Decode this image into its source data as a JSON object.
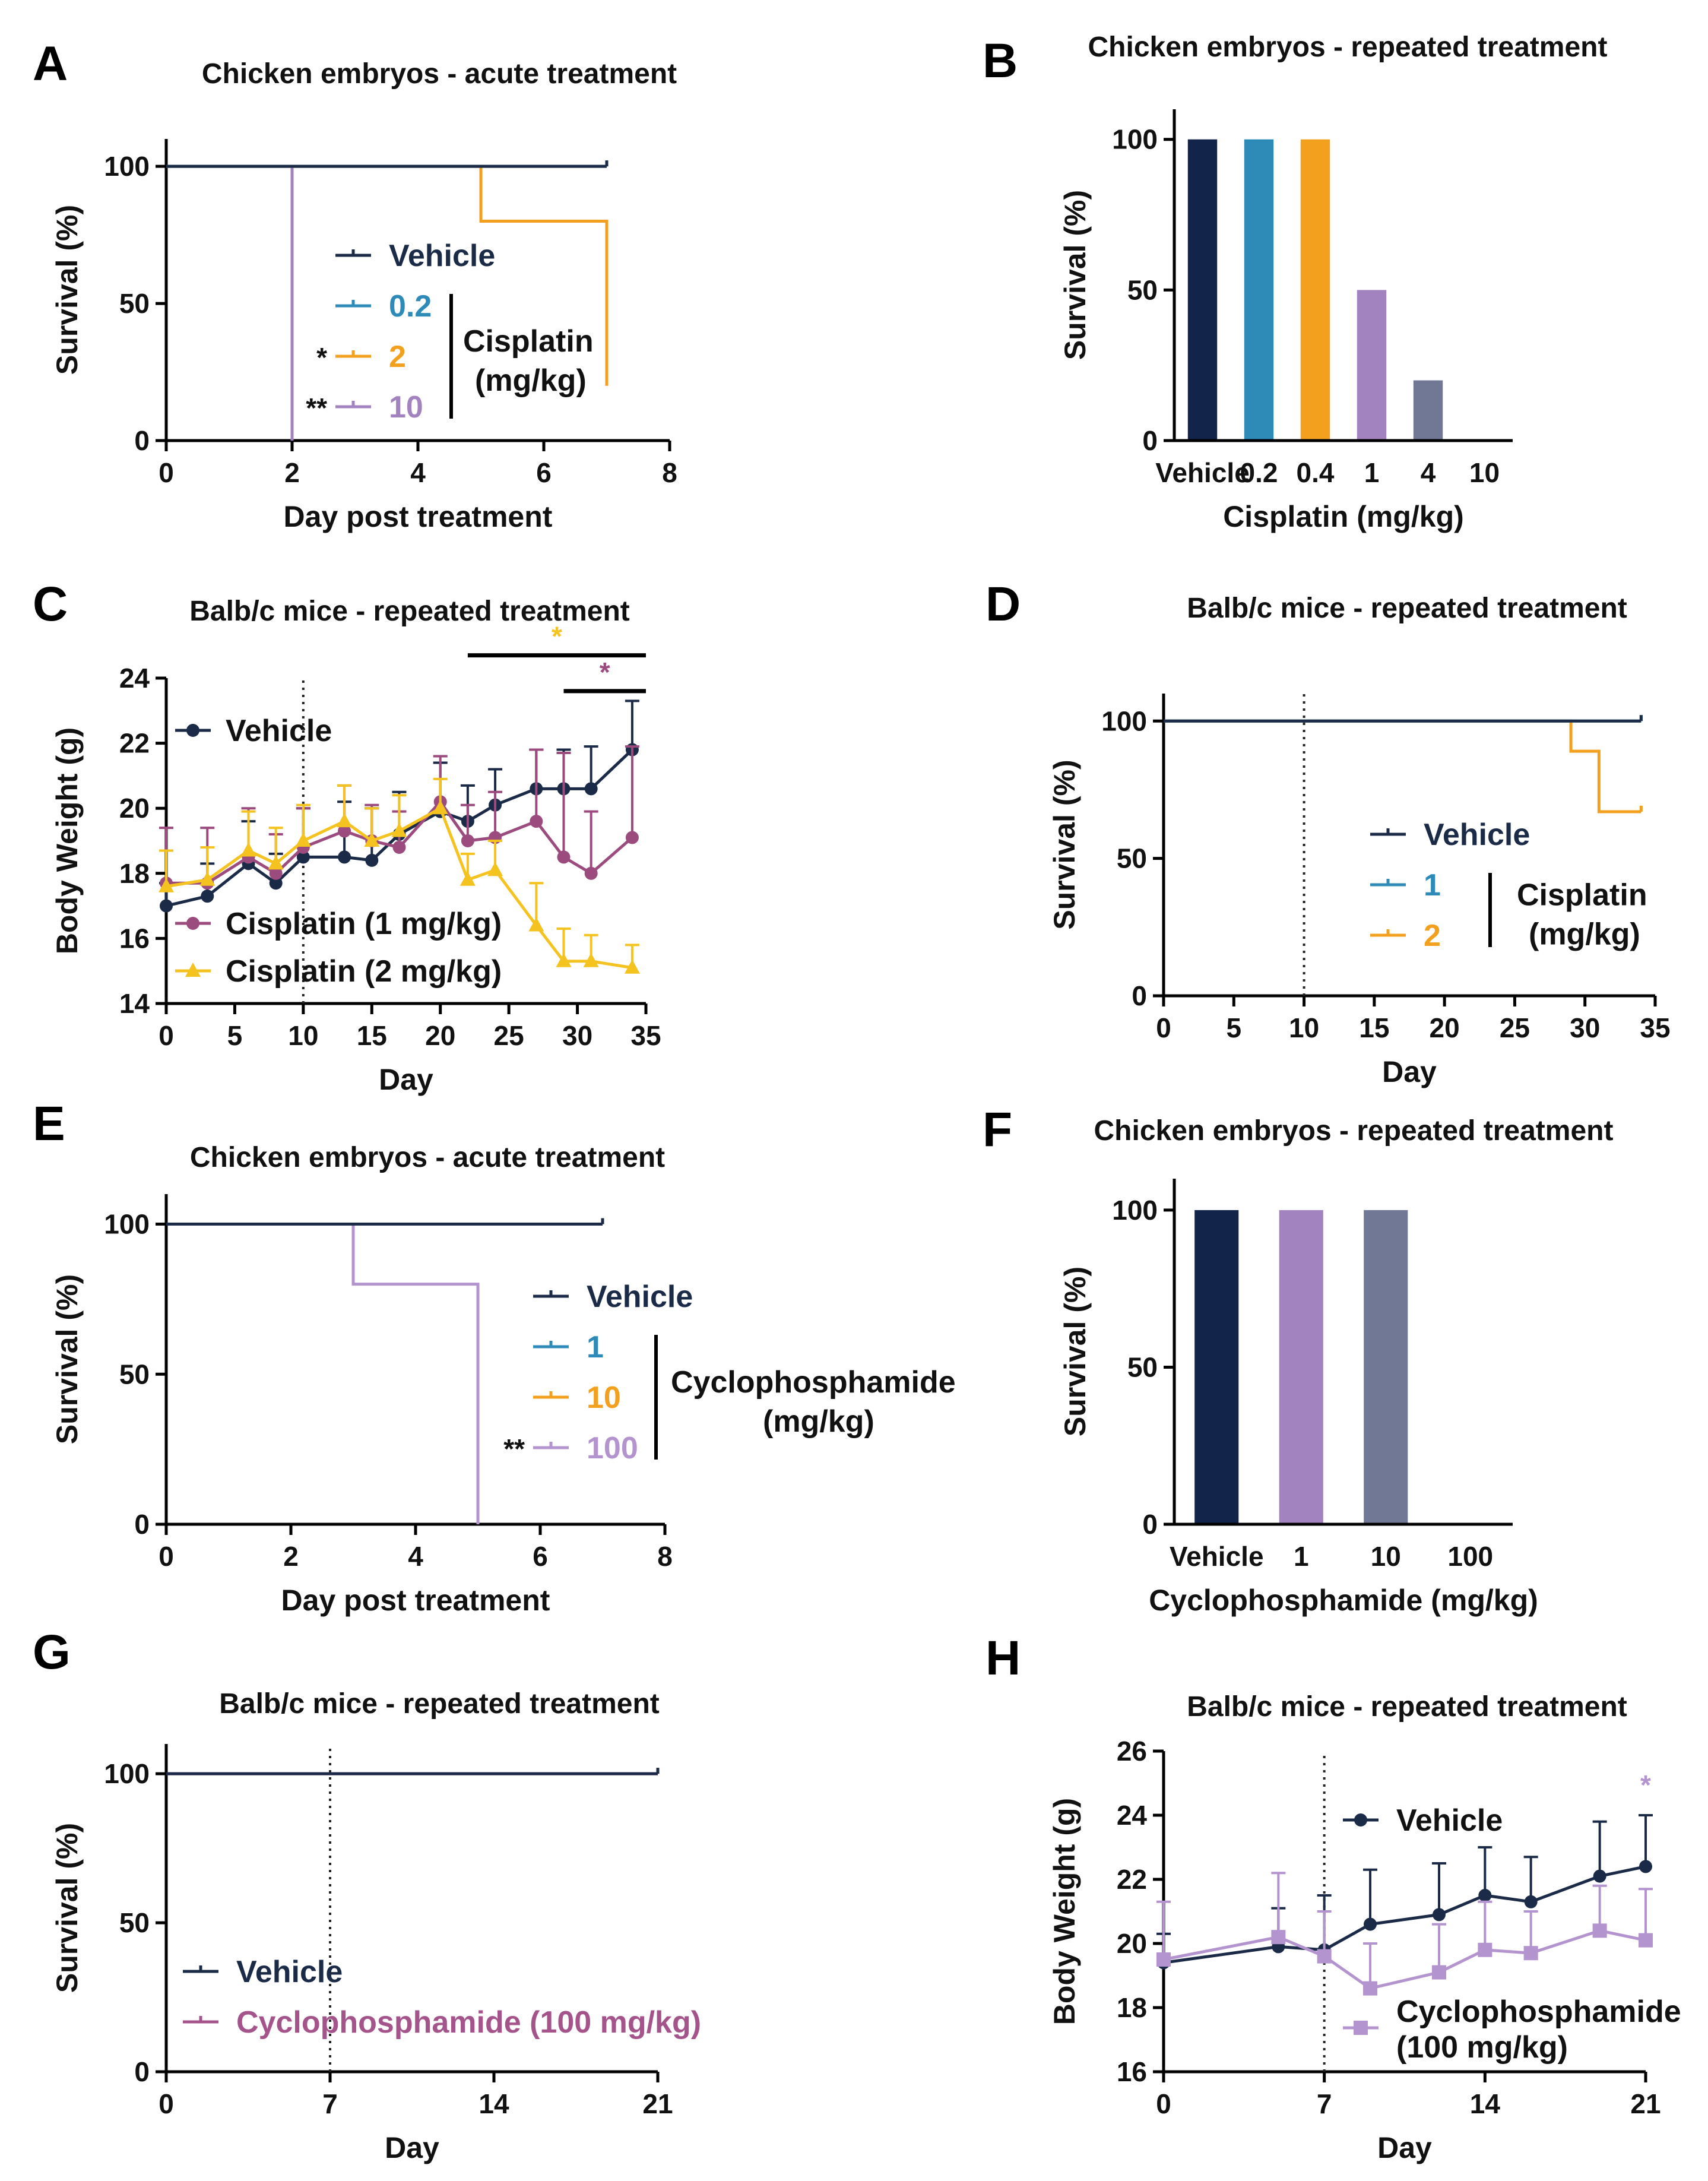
{
  "colors": {
    "navy": "#1a2a47",
    "blue": "#2e8bb8",
    "orange": "#f2a01d",
    "lilac": "#a383bf",
    "slate": "#717896",
    "magenta": "#9c4b7e",
    "yellow": "#f5c320",
    "cyclo_light": "#b494cf",
    "cyclo_pink": "#a5548b",
    "dark_bar": "#13244a"
  },
  "chart_data": [
    {
      "panel": "A",
      "type": "line",
      "title": "Chicken embryos - acute treatment",
      "xlabel": "Day post treatment",
      "ylabel": "Survival (%)",
      "xlim": [
        0,
        8
      ],
      "ylim": [
        0,
        110
      ],
      "xticks": [
        0,
        2,
        4,
        6,
        8
      ],
      "yticks": [
        0,
        50,
        100
      ],
      "series": [
        {
          "name": "Vehicle",
          "color": "navy",
          "x": [
            0,
            7
          ],
          "y": [
            100,
            100
          ],
          "step": true
        },
        {
          "name": "0.2",
          "color": "blue",
          "x": [
            0,
            7
          ],
          "y": [
            100,
            100
          ],
          "step": true
        },
        {
          "name": "2",
          "color": "orange",
          "sig": "*",
          "x": [
            0,
            5,
            7
          ],
          "y": [
            100,
            80,
            20
          ],
          "step": true
        },
        {
          "name": "10",
          "color": "lilac",
          "sig": "**",
          "x": [
            0,
            2
          ],
          "y": [
            100,
            0
          ],
          "step": true
        }
      ],
      "legend_group_label": "Cisplatin (mg/kg)",
      "legend_group_lines": [
        "Cisplatin",
        "(mg/kg)"
      ]
    },
    {
      "panel": "B",
      "type": "bar",
      "title": "Chicken embryos - repeated treatment",
      "xlabel": "Cisplatin (mg/kg)",
      "ylabel": "Survival (%)",
      "categories": [
        "Vehicle",
        "0.2",
        "0.4",
        "1",
        "4",
        "10"
      ],
      "values": [
        100,
        100,
        100,
        50,
        20,
        0
      ],
      "bar_colors": [
        "dark_bar",
        "blue",
        "orange",
        "lilac",
        "slate",
        "slate"
      ],
      "ylim": [
        0,
        110
      ],
      "yticks": [
        0,
        50,
        100
      ]
    },
    {
      "panel": "C",
      "type": "line",
      "title": "Balb/c mice - repeated treatment",
      "xlabel": "Day",
      "ylabel": "Body Weight (g)",
      "xlim": [
        0,
        35
      ],
      "ylim": [
        14,
        24
      ],
      "xticks": [
        0,
        5,
        10,
        15,
        20,
        25,
        30,
        35
      ],
      "yticks": [
        14,
        16,
        18,
        20,
        22,
        24
      ],
      "vline": 10,
      "series": [
        {
          "name": "Vehicle",
          "color": "navy",
          "marker": "circle",
          "x": [
            0,
            3,
            6,
            8,
            10,
            13,
            15,
            17,
            20,
            22,
            24,
            27,
            29,
            31,
            34
          ],
          "y": [
            17.0,
            17.3,
            18.3,
            17.7,
            18.5,
            18.5,
            18.4,
            19.2,
            19.9,
            19.6,
            20.1,
            20.6,
            20.6,
            20.6,
            21.8
          ],
          "err": [
            0.7,
            1.0,
            1.3,
            0.9,
            1.5,
            1.7,
            1.6,
            1.3,
            1.5,
            1.1,
            1.1,
            1.2,
            1.2,
            1.3,
            1.5
          ]
        },
        {
          "name": "Cisplatin (1 mg/kg)",
          "color": "magenta",
          "marker": "circle",
          "x": [
            0,
            3,
            6,
            8,
            10,
            13,
            15,
            17,
            20,
            22,
            24,
            27,
            29,
            31,
            34
          ],
          "y": [
            17.7,
            17.7,
            18.5,
            18.0,
            18.8,
            19.3,
            19.0,
            18.8,
            20.2,
            19.0,
            19.1,
            19.6,
            18.5,
            18.0,
            19.1
          ],
          "err": [
            1.7,
            1.7,
            1.5,
            1.2,
            1.2,
            1.4,
            1.1,
            1.1,
            1.4,
            1.1,
            1.4,
            2.2,
            3.2,
            1.9,
            2.8
          ]
        },
        {
          "name": "Cisplatin (2 mg/kg)",
          "color": "yellow",
          "marker": "tri",
          "x": [
            0,
            3,
            6,
            8,
            10,
            13,
            15,
            17,
            20,
            22,
            24,
            27,
            29,
            31,
            34
          ],
          "y": [
            17.6,
            17.8,
            18.7,
            18.3,
            19.0,
            19.6,
            19.0,
            19.3,
            20.0,
            17.8,
            18.1,
            16.4,
            15.3,
            15.3,
            15.1
          ],
          "err": [
            1.1,
            1.0,
            1.2,
            1.1,
            1.1,
            1.1,
            1.0,
            1.1,
            0.9,
            0.8,
            0.9,
            1.3,
            1.0,
            0.8,
            0.7
          ]
        }
      ],
      "sig_bars": [
        {
          "label": "*",
          "color": "yellow",
          "x_from": 22,
          "x_to": 35,
          "y_level": 24.7
        },
        {
          "label": "*",
          "color": "magenta",
          "x_from": 29,
          "x_to": 35,
          "y_level": 23.6
        }
      ]
    },
    {
      "panel": "D",
      "type": "line",
      "title": "Balb/c mice - repeated treatment",
      "xlabel": "Day",
      "ylabel": "Survival (%)",
      "xlim": [
        0,
        35
      ],
      "ylim": [
        0,
        110
      ],
      "xticks": [
        0,
        5,
        10,
        15,
        20,
        25,
        30,
        35
      ],
      "yticks": [
        0,
        50,
        100
      ],
      "vline": 10,
      "series": [
        {
          "name": "Vehicle",
          "color": "navy",
          "x": [
            0,
            34
          ],
          "y": [
            100,
            100
          ],
          "step": true
        },
        {
          "name": "1",
          "color": "blue",
          "x": [
            0,
            34
          ],
          "y": [
            100,
            100
          ],
          "step": true
        },
        {
          "name": "2",
          "color": "orange",
          "x": [
            0,
            29,
            31,
            34
          ],
          "y": [
            100,
            89,
            67,
            67
          ],
          "step": true
        }
      ],
      "legend_group_label": "Cisplatin (mg/kg)",
      "legend_group_lines": [
        "Cisplatin",
        "(mg/kg)"
      ]
    },
    {
      "panel": "E",
      "type": "line",
      "title": "Chicken embryos - acute treatment",
      "xlabel": "Day post treatment",
      "ylabel": "Survival (%)",
      "xlim": [
        0,
        8
      ],
      "ylim": [
        0,
        110
      ],
      "xticks": [
        0,
        2,
        4,
        6,
        8
      ],
      "yticks": [
        0,
        50,
        100
      ],
      "series": [
        {
          "name": "Vehicle",
          "color": "navy",
          "x": [
            0,
            7
          ],
          "y": [
            100,
            100
          ],
          "step": true
        },
        {
          "name": "1",
          "color": "blue",
          "x": [
            0,
            7
          ],
          "y": [
            100,
            100
          ],
          "step": true
        },
        {
          "name": "10",
          "color": "orange",
          "x": [
            0,
            7
          ],
          "y": [
            100,
            100
          ],
          "step": true
        },
        {
          "name": "100",
          "color": "cyclo_light",
          "sig": "**",
          "x": [
            0,
            3,
            5
          ],
          "y": [
            100,
            80,
            0
          ],
          "step": true
        }
      ],
      "legend_group_label": "Cyclophosphamide (mg/kg)",
      "legend_group_lines": [
        "Cyclophosphamide",
        "(mg/kg)"
      ]
    },
    {
      "panel": "F",
      "type": "bar",
      "title": "Chicken embryos - repeated treatment",
      "xlabel": "Cyclophosphamide (mg/kg)",
      "ylabel": "Survival (%)",
      "categories": [
        "Vehicle",
        "1",
        "10",
        "100"
      ],
      "values": [
        100,
        100,
        100,
        0
      ],
      "bar_colors": [
        "dark_bar",
        "lilac",
        "slate",
        "slate"
      ],
      "ylim": [
        0,
        110
      ],
      "yticks": [
        0,
        50,
        100
      ]
    },
    {
      "panel": "G",
      "type": "line",
      "title": "Balb/c mice - repeated treatment",
      "xlabel": "Day",
      "ylabel": "Survival (%)",
      "xlim": [
        0,
        21
      ],
      "ylim": [
        0,
        110
      ],
      "xticks": [
        0,
        7,
        14,
        21
      ],
      "yticks": [
        0,
        50,
        100
      ],
      "vline": 7,
      "series": [
        {
          "name": "Vehicle",
          "color": "navy",
          "x": [
            0,
            21
          ],
          "y": [
            100,
            100
          ],
          "step": true
        },
        {
          "name": "Cyclophosphamide (100 mg/kg)",
          "color": "cyclo_pink",
          "x": [
            0,
            21
          ],
          "y": [
            100,
            100
          ],
          "step": true
        }
      ]
    },
    {
      "panel": "H",
      "type": "line",
      "title": "Balb/c mice - repeated treatment",
      "xlabel": "Day",
      "ylabel": "Body Weight (g)",
      "xlim": [
        0,
        21
      ],
      "ylim": [
        16,
        26
      ],
      "xticks": [
        0,
        7,
        14,
        21
      ],
      "yticks": [
        16,
        18,
        20,
        22,
        24,
        26
      ],
      "vline": 7,
      "series": [
        {
          "name": "Vehicle",
          "color": "navy",
          "marker": "circle",
          "x": [
            0,
            5,
            7,
            9,
            12,
            14,
            16,
            19,
            21
          ],
          "y": [
            19.4,
            19.9,
            19.8,
            20.6,
            20.9,
            21.5,
            21.3,
            22.1,
            22.4
          ],
          "err": [
            0.9,
            1.2,
            1.7,
            1.7,
            1.6,
            1.5,
            1.4,
            1.7,
            1.6
          ]
        },
        {
          "name": "Cyclophosphamide (100 mg/kg)",
          "color": "cyclo_light",
          "marker": "square",
          "x": [
            0,
            5,
            7,
            9,
            12,
            14,
            16,
            19,
            21
          ],
          "y": [
            19.5,
            20.2,
            19.6,
            18.6,
            19.1,
            19.8,
            19.7,
            20.4,
            20.1
          ],
          "err": [
            1.8,
            2.0,
            1.4,
            1.4,
            1.5,
            1.5,
            1.3,
            1.4,
            1.6
          ]
        }
      ],
      "legend_lines": [
        "Vehicle",
        "Cyclophosphamide",
        "(100 mg/kg)"
      ],
      "sig_marks": [
        {
          "label": "*",
          "color": "cyclo_light",
          "x": 21
        }
      ]
    }
  ]
}
